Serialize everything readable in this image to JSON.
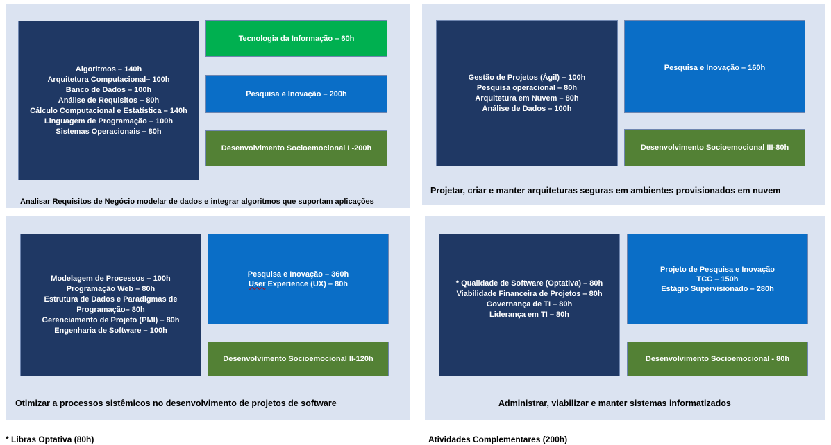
{
  "q1": {
    "left_lines": [
      "Algoritmos – 140h",
      "Arquitetura Computacional– 100h",
      "Banco de Dados – 100h",
      "Análise de Requisitos – 80h",
      "Cálculo Computacional e Estatística – 140h",
      "Linguagem de Programação – 100h",
      "Sistemas Operacionais – 80h"
    ],
    "top": "Tecnologia da Informação – 60h",
    "middle": "Pesquisa e Inovação – 200h",
    "bottom": "Desenvolvimento Socioemocional I -200h",
    "caption": "Analisar Requisitos de Negócio modelar  de dados e integrar algoritmos que suportam aplicações"
  },
  "q2": {
    "left_lines": [
      "Gestão de Projetos (Ágil) – 100h",
      "Pesquisa operacional – 80h",
      "Arquitetura em Nuvem – 80h",
      "Análise de Dados – 100h"
    ],
    "top": "Pesquisa e Inovação – 160h",
    "bottom": "Desenvolvimento Socioemocional  III-80h",
    "caption": "Projetar, criar e manter arquiteturas seguras em ambientes provisionados em nuvem"
  },
  "q3": {
    "left_lines": [
      "Modelagem de Processos – 100h",
      "Programação Web – 80h",
      "Estrutura de Dados e Paradigmas  de",
      "Programação– 80h",
      "Gerenciamento de Projeto (PMI) – 80h",
      "Engenharia de Software – 100h"
    ],
    "top_line1": "Pesquisa e Inovação – 360h",
    "top_line2_ul": "User",
    "top_line2_rest": " Experience (UX) – 80h",
    "bottom": "Desenvolvimento Socioemocional II-120h",
    "caption": "Otimizar a processos sistêmicos no desenvolvimento de projetos de software"
  },
  "q4": {
    "left_lines": [
      "* Qualidade de Software  (Optativa) – 80h",
      "Viabilidade Financeira de Projetos – 80h",
      "Governança de TI – 80h",
      "Liderança em TI – 80h"
    ],
    "top_lines": [
      "Projeto de Pesquisa e Inovação",
      "TCC – 150h",
      "Estágio Supervisionado – 280h"
    ],
    "bottom": "Desenvolvimento Socioemocional - 80h",
    "caption": "Administrar, viabilizar e manter sistemas informatizados"
  },
  "footer": {
    "left": "* Libras Optativa (80h)",
    "right": "Atividades Complementares  (200h)"
  }
}
